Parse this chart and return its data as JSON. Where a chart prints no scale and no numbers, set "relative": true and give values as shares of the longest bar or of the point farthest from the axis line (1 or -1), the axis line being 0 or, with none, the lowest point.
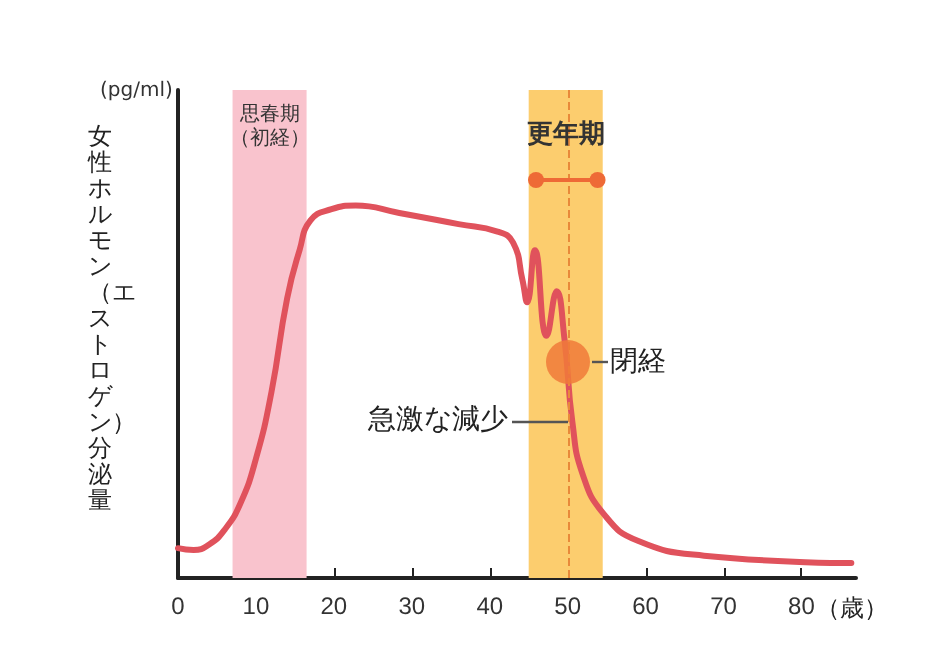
{
  "chart_data": {
    "type": "line",
    "relative": true,
    "ylabel": "女性ホルモン（エストロゲン）分泌量",
    "xlabel": "（歳）",
    "x": [
      0,
      2,
      4,
      6,
      8,
      10,
      12,
      14,
      15.6,
      17,
      19.7,
      22.8,
      28.4,
      36,
      41,
      43,
      44.2,
      44.8,
      45.8,
      47.3,
      48.6,
      49.6,
      50.6,
      51.9,
      54.7,
      59,
      67.5,
      86.4
    ],
    "series": [
      {
        "color": "#e0525c",
        "values": [
          0.08,
          0.075,
          0.09,
          0.13,
          0.2,
          0.32,
          0.5,
          0.75,
          0.88,
          0.96,
          0.99,
          1,
          0.98,
          0.95,
          0.93,
          0.9,
          0.8,
          0.74,
          0.88,
          0.65,
          0.77,
          0.64,
          0.42,
          0.28,
          0.17,
          0.1,
          0.06,
          0.04
        ]
      }
    ],
    "xlim": [
      0,
      87
    ],
    "xticks": [
      0,
      10,
      20,
      30,
      40,
      50,
      60,
      70,
      80
    ],
    "bands": [
      {
        "axis": "x",
        "from": 7,
        "to": 16.5,
        "label": "思春期（初経）",
        "color": "#f9c3cd"
      },
      {
        "axis": "x",
        "from": 45,
        "to": 54.5,
        "label": "更年期",
        "color": "#fccd6e"
      }
    ],
    "ref_lines": [
      {
        "axis": "x",
        "value": 50,
        "label": null,
        "color": "#e8893a",
        "line_style": "dashed"
      }
    ],
    "annotations": [
      "(pg/ml)",
      {
        "text": "閉経",
        "x": 50.1,
        "y": 0.58
      },
      {
        "text": "急激な減少",
        "x": 50.5,
        "y": 0.42
      }
    ],
    "grid": false,
    "marker": "none",
    "line_style": "solid",
    "legend": false
  }
}
